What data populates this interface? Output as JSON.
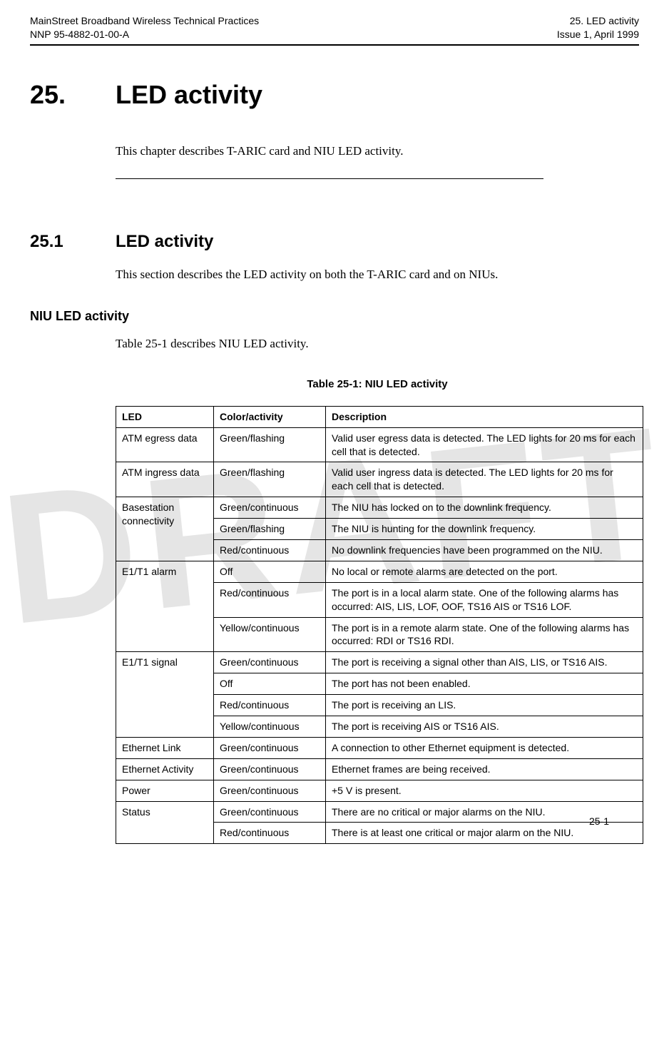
{
  "watermark": "DRAFT",
  "header": {
    "left_line1": "MainStreet Broadband Wireless Technical Practices",
    "left_line2": "NNP 95-4882-01-00-A",
    "right_line1": "25. LED activity",
    "right_line2": "Issue 1, April 1999"
  },
  "chapter": {
    "number": "25.",
    "title": "LED activity",
    "intro": "This chapter describes T-ARIC card and NIU LED activity."
  },
  "section": {
    "number": "25.1",
    "title": "LED activity",
    "para": "This section describes the LED activity on both the T-ARIC card and on NIUs."
  },
  "subhead": "NIU LED activity",
  "sub_para": "Table 25-1 describes NIU LED activity.",
  "table": {
    "caption": "Table 25-1:  NIU LED activity",
    "columns": {
      "led": "LED",
      "color": "Color/activity",
      "desc": "Description"
    },
    "rows": [
      {
        "led": "ATM egress data",
        "rowspan": 1,
        "color": "Green/flashing",
        "desc": "Valid user egress data is detected. The LED lights for 20 ms for each cell that is detected."
      },
      {
        "led": "ATM ingress data",
        "rowspan": 1,
        "color": "Green/flashing",
        "desc": "Valid user ingress data is detected. The LED lights for 20 ms for each cell that is detected."
      },
      {
        "led": "Basestation connectivity",
        "rowspan": 3,
        "color": "Green/continuous",
        "desc": "The NIU has locked on to the downlink frequency."
      },
      {
        "led": null,
        "color": "Green/flashing",
        "desc": "The NIU is hunting for the downlink frequency."
      },
      {
        "led": null,
        "color": "Red/continuous",
        "desc": "No downlink frequencies have been programmed on the NIU."
      },
      {
        "led": "E1/T1 alarm",
        "rowspan": 3,
        "color": "Off",
        "desc": "No local or remote alarms are detected on the port."
      },
      {
        "led": null,
        "color": "Red/continuous",
        "desc": "The port is in a local alarm state. One of the following alarms has occurred: AIS, LIS, LOF, OOF, TS16 AIS or TS16 LOF."
      },
      {
        "led": null,
        "color": "Yellow/continuous",
        "desc": "The port is in a remote alarm state. One of the following alarms has occurred: RDI or TS16 RDI."
      },
      {
        "led": "E1/T1 signal",
        "rowspan": 4,
        "color": "Green/continuous",
        "desc": "The port is receiving a signal other than AIS, LIS, or TS16 AIS."
      },
      {
        "led": null,
        "color": "Off",
        "desc": "The port has not been enabled."
      },
      {
        "led": null,
        "color": "Red/continuous",
        "desc": "The port is receiving an LIS."
      },
      {
        "led": null,
        "color": "Yellow/continuous",
        "desc": "The port is receiving AIS or TS16 AIS."
      },
      {
        "led": "Ethernet Link",
        "rowspan": 1,
        "color": "Green/continuous",
        "desc": "A connection to other Ethernet equipment is detected."
      },
      {
        "led": "Ethernet Activity",
        "rowspan": 1,
        "color": "Green/continuous",
        "desc": "Ethernet frames are being received."
      },
      {
        "led": "Power",
        "rowspan": 1,
        "color": "Green/continuous",
        "desc": "+5 V is present."
      },
      {
        "led": "Status",
        "rowspan": 2,
        "color": "Green/continuous",
        "desc": "There are no critical or major alarms on the NIU."
      },
      {
        "led": null,
        "color": "Red/continuous",
        "desc": "There is at least one critical or major alarm on the NIU."
      }
    ]
  },
  "footer": "25-1"
}
